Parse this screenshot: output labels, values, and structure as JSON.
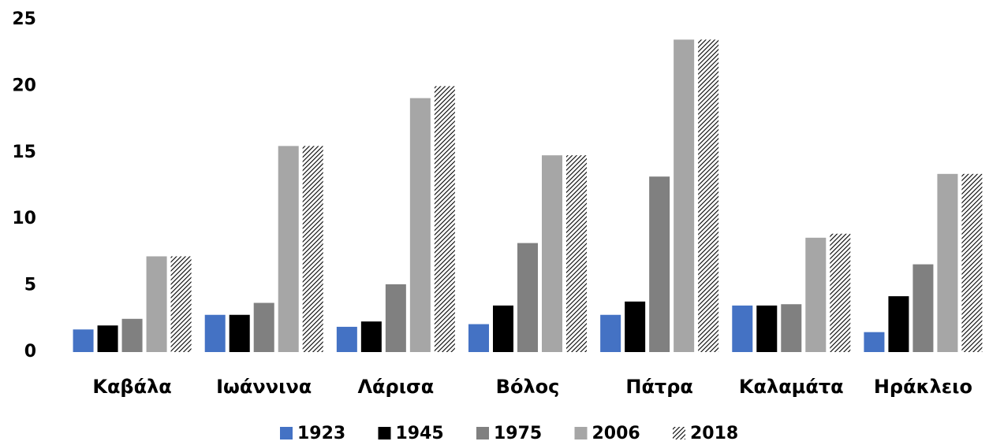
{
  "chart_data": {
    "type": "bar",
    "categories": [
      "Καβάλα",
      "Ιωάννινα",
      "Λάρισα",
      "Βόλος",
      "Πάτρα",
      "Καλαμάτα",
      "Ηράκλειο"
    ],
    "series": [
      {
        "name": "1923",
        "color": "#4472c4",
        "values": [
          1.7,
          2.8,
          1.9,
          2.1,
          2.8,
          3.5,
          1.5
        ]
      },
      {
        "name": "1945",
        "color": "#000000",
        "values": [
          2.0,
          2.8,
          2.3,
          3.5,
          3.8,
          3.5,
          4.2
        ]
      },
      {
        "name": "1975",
        "color": "#808080",
        "values": [
          2.5,
          3.7,
          5.1,
          8.2,
          13.2,
          3.6,
          6.6
        ]
      },
      {
        "name": "2006",
        "color": "#a6a6a6",
        "values": [
          7.2,
          15.5,
          19.1,
          14.8,
          23.5,
          8.6,
          13.4
        ]
      },
      {
        "name": "2018",
        "color": "#000000",
        "pattern": "diagonal-hatch",
        "values": [
          7.2,
          15.5,
          20.0,
          14.8,
          23.5,
          8.9,
          13.4
        ]
      }
    ],
    "ylim": [
      0,
      25
    ],
    "yticks": [
      0,
      5,
      10,
      15,
      20,
      25
    ],
    "grid": false,
    "legend": "bottom"
  }
}
